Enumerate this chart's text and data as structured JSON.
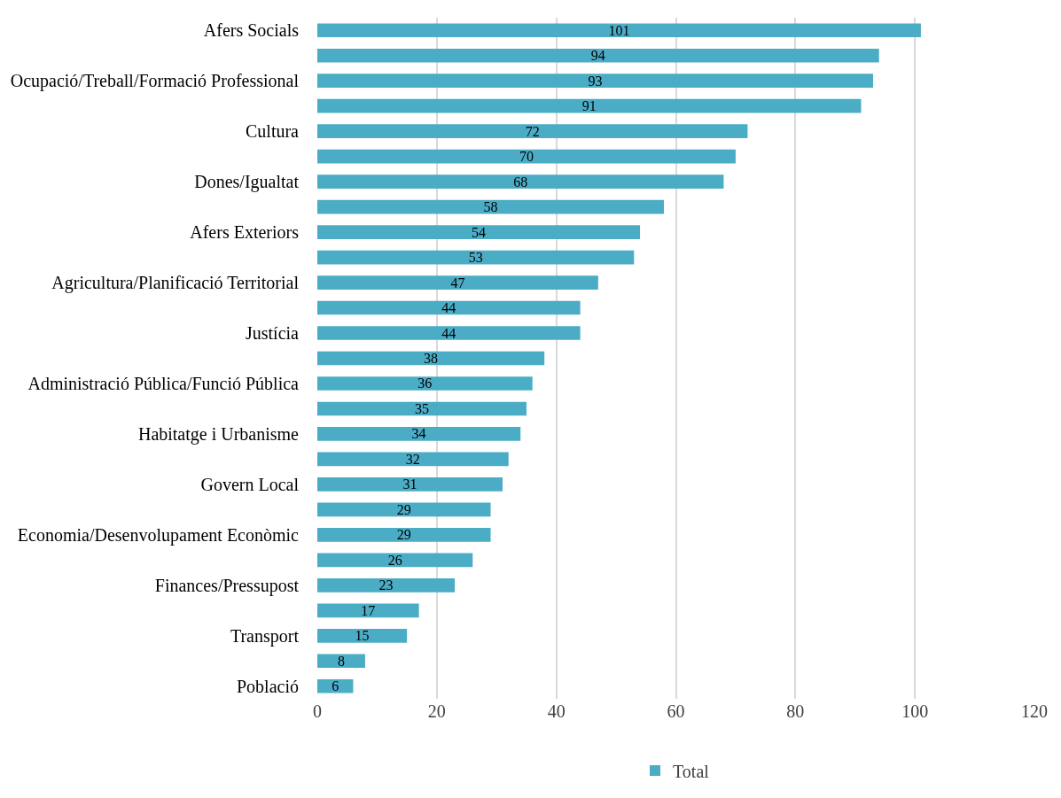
{
  "chart_data": {
    "type": "bar",
    "orientation": "horizontal",
    "categories": [
      "Afers Socials",
      null,
      "Ocupació/Treball/Formació Professional",
      null,
      "Cultura",
      null,
      "Dones/Igualtat",
      null,
      "Afers Exteriors",
      null,
      "Agricultura/Planificació Territorial",
      null,
      "Justícia",
      null,
      "Administració Pública/Funció Pública",
      null,
      "Habitatge i Urbanisme",
      null,
      "Govern Local",
      null,
      "Economia/Desenvolupament Econòmic",
      null,
      "Finances/Pressupost",
      null,
      "Transport",
      null,
      "Població"
    ],
    "series": [
      {
        "name": "Total",
        "color": "#4bacc6",
        "values": [
          101,
          94,
          93,
          91,
          72,
          70,
          68,
          58,
          54,
          53,
          47,
          44,
          44,
          38,
          36,
          35,
          34,
          32,
          31,
          29,
          29,
          26,
          23,
          17,
          15,
          8,
          6
        ]
      }
    ],
    "xlim": [
      0,
      120
    ],
    "xticks": [
      0,
      20,
      40,
      60,
      80,
      100,
      120
    ],
    "grid": "x",
    "legend": "bottom",
    "data_labels": true
  }
}
